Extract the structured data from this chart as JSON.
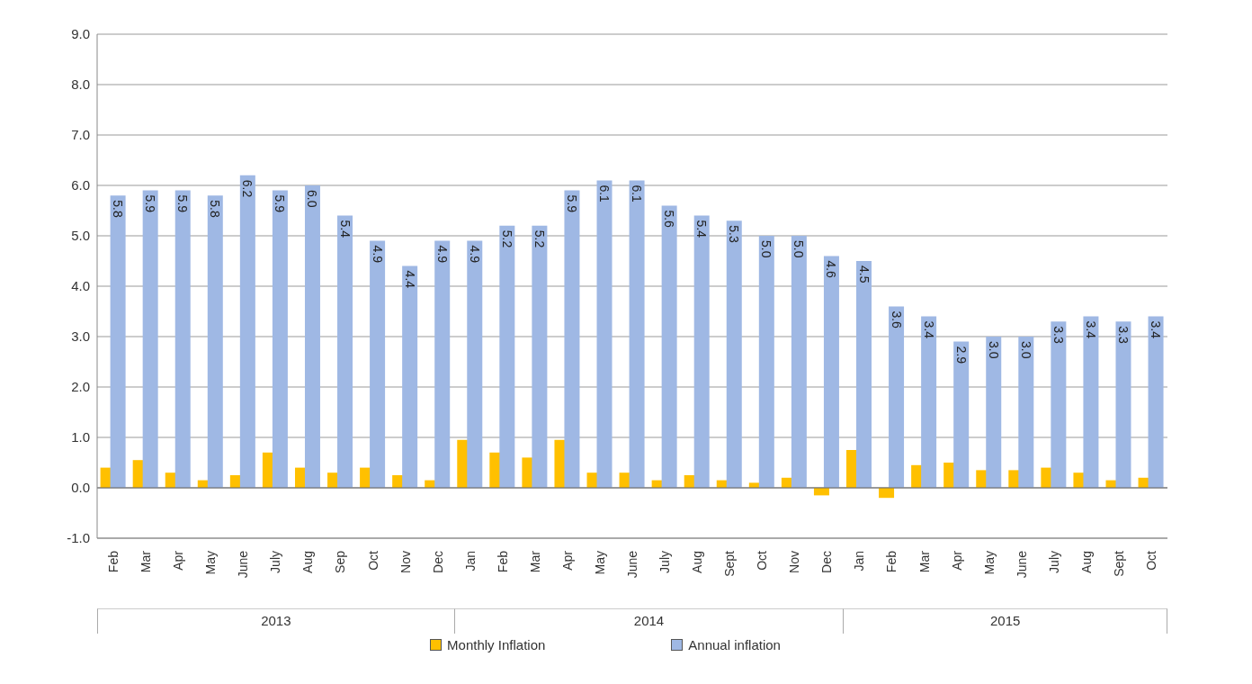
{
  "chart_data": {
    "type": "bar",
    "categories": [
      "Feb",
      "Mar",
      "Apr",
      "May",
      "June",
      "July",
      "Aug",
      "Sep",
      "Oct",
      "Nov",
      "Dec",
      "Jan",
      "Feb",
      "Mar",
      "Apr",
      "May",
      "June",
      "July",
      "Aug",
      "Sept",
      "Oct",
      "Nov",
      "Dec",
      "Jan",
      "Feb",
      "Mar",
      "Apr",
      "May",
      "June",
      "July",
      "Aug",
      "Sept",
      "Oct"
    ],
    "series": [
      {
        "name": "Monthly Inflation",
        "color": "#ffc000",
        "values": [
          0.4,
          0.55,
          0.3,
          0.15,
          0.25,
          0.7,
          0.4,
          0.3,
          0.4,
          0.25,
          0.15,
          0.95,
          0.7,
          0.6,
          0.95,
          0.3,
          0.3,
          0.15,
          0.25,
          0.15,
          0.1,
          0.2,
          -0.15,
          0.75,
          -0.2,
          0.45,
          0.5,
          0.35,
          0.35,
          0.4,
          0.3,
          0.15,
          0.2
        ]
      },
      {
        "name": "Annual inflation",
        "color": "#9fb8e4",
        "values": [
          5.8,
          5.9,
          5.9,
          5.8,
          6.2,
          5.9,
          6.0,
          5.4,
          4.9,
          4.4,
          4.9,
          4.9,
          5.2,
          5.2,
          5.9,
          6.1,
          6.1,
          5.6,
          5.4,
          5.3,
          5.0,
          5.0,
          4.6,
          4.5,
          3.6,
          3.4,
          2.9,
          3.0,
          3.0,
          3.3,
          3.4,
          3.3,
          3.4
        ],
        "value_labels": [
          "5.8",
          "5.9",
          "5.9",
          "5.8",
          "6.2",
          "5.9",
          "6.0",
          "5.4",
          "4.9",
          "4.4",
          "4.9",
          "4.9",
          "5.2",
          "5.2",
          "5.9",
          "6.1",
          "6.1",
          "5.6",
          "5.4",
          "5.3",
          "5.0",
          "5.0",
          "4.6",
          "4.5",
          "3.6",
          "3.4",
          "2.9",
          "3.0",
          "3.0",
          "3.3",
          "3.4",
          "3.3",
          "3.4"
        ]
      }
    ],
    "ylim": [
      -1,
      9
    ],
    "yticks": [
      {
        "value": -1,
        "label": "-1.0"
      },
      {
        "value": 0,
        "label": "0.0"
      },
      {
        "value": 1,
        "label": "1.0"
      },
      {
        "value": 2,
        "label": "2.0"
      },
      {
        "value": 3,
        "label": "3.0"
      },
      {
        "value": 4,
        "label": "4.0"
      },
      {
        "value": 5,
        "label": "5.0"
      },
      {
        "value": 6,
        "label": "6.0"
      },
      {
        "value": 7,
        "label": "7.0"
      },
      {
        "value": 8,
        "label": "8.0"
      },
      {
        "value": 9,
        "label": "9.0"
      }
    ],
    "grid": "y",
    "legend": "bottom",
    "annotations": [
      "2013",
      "2014",
      "2015"
    ]
  }
}
